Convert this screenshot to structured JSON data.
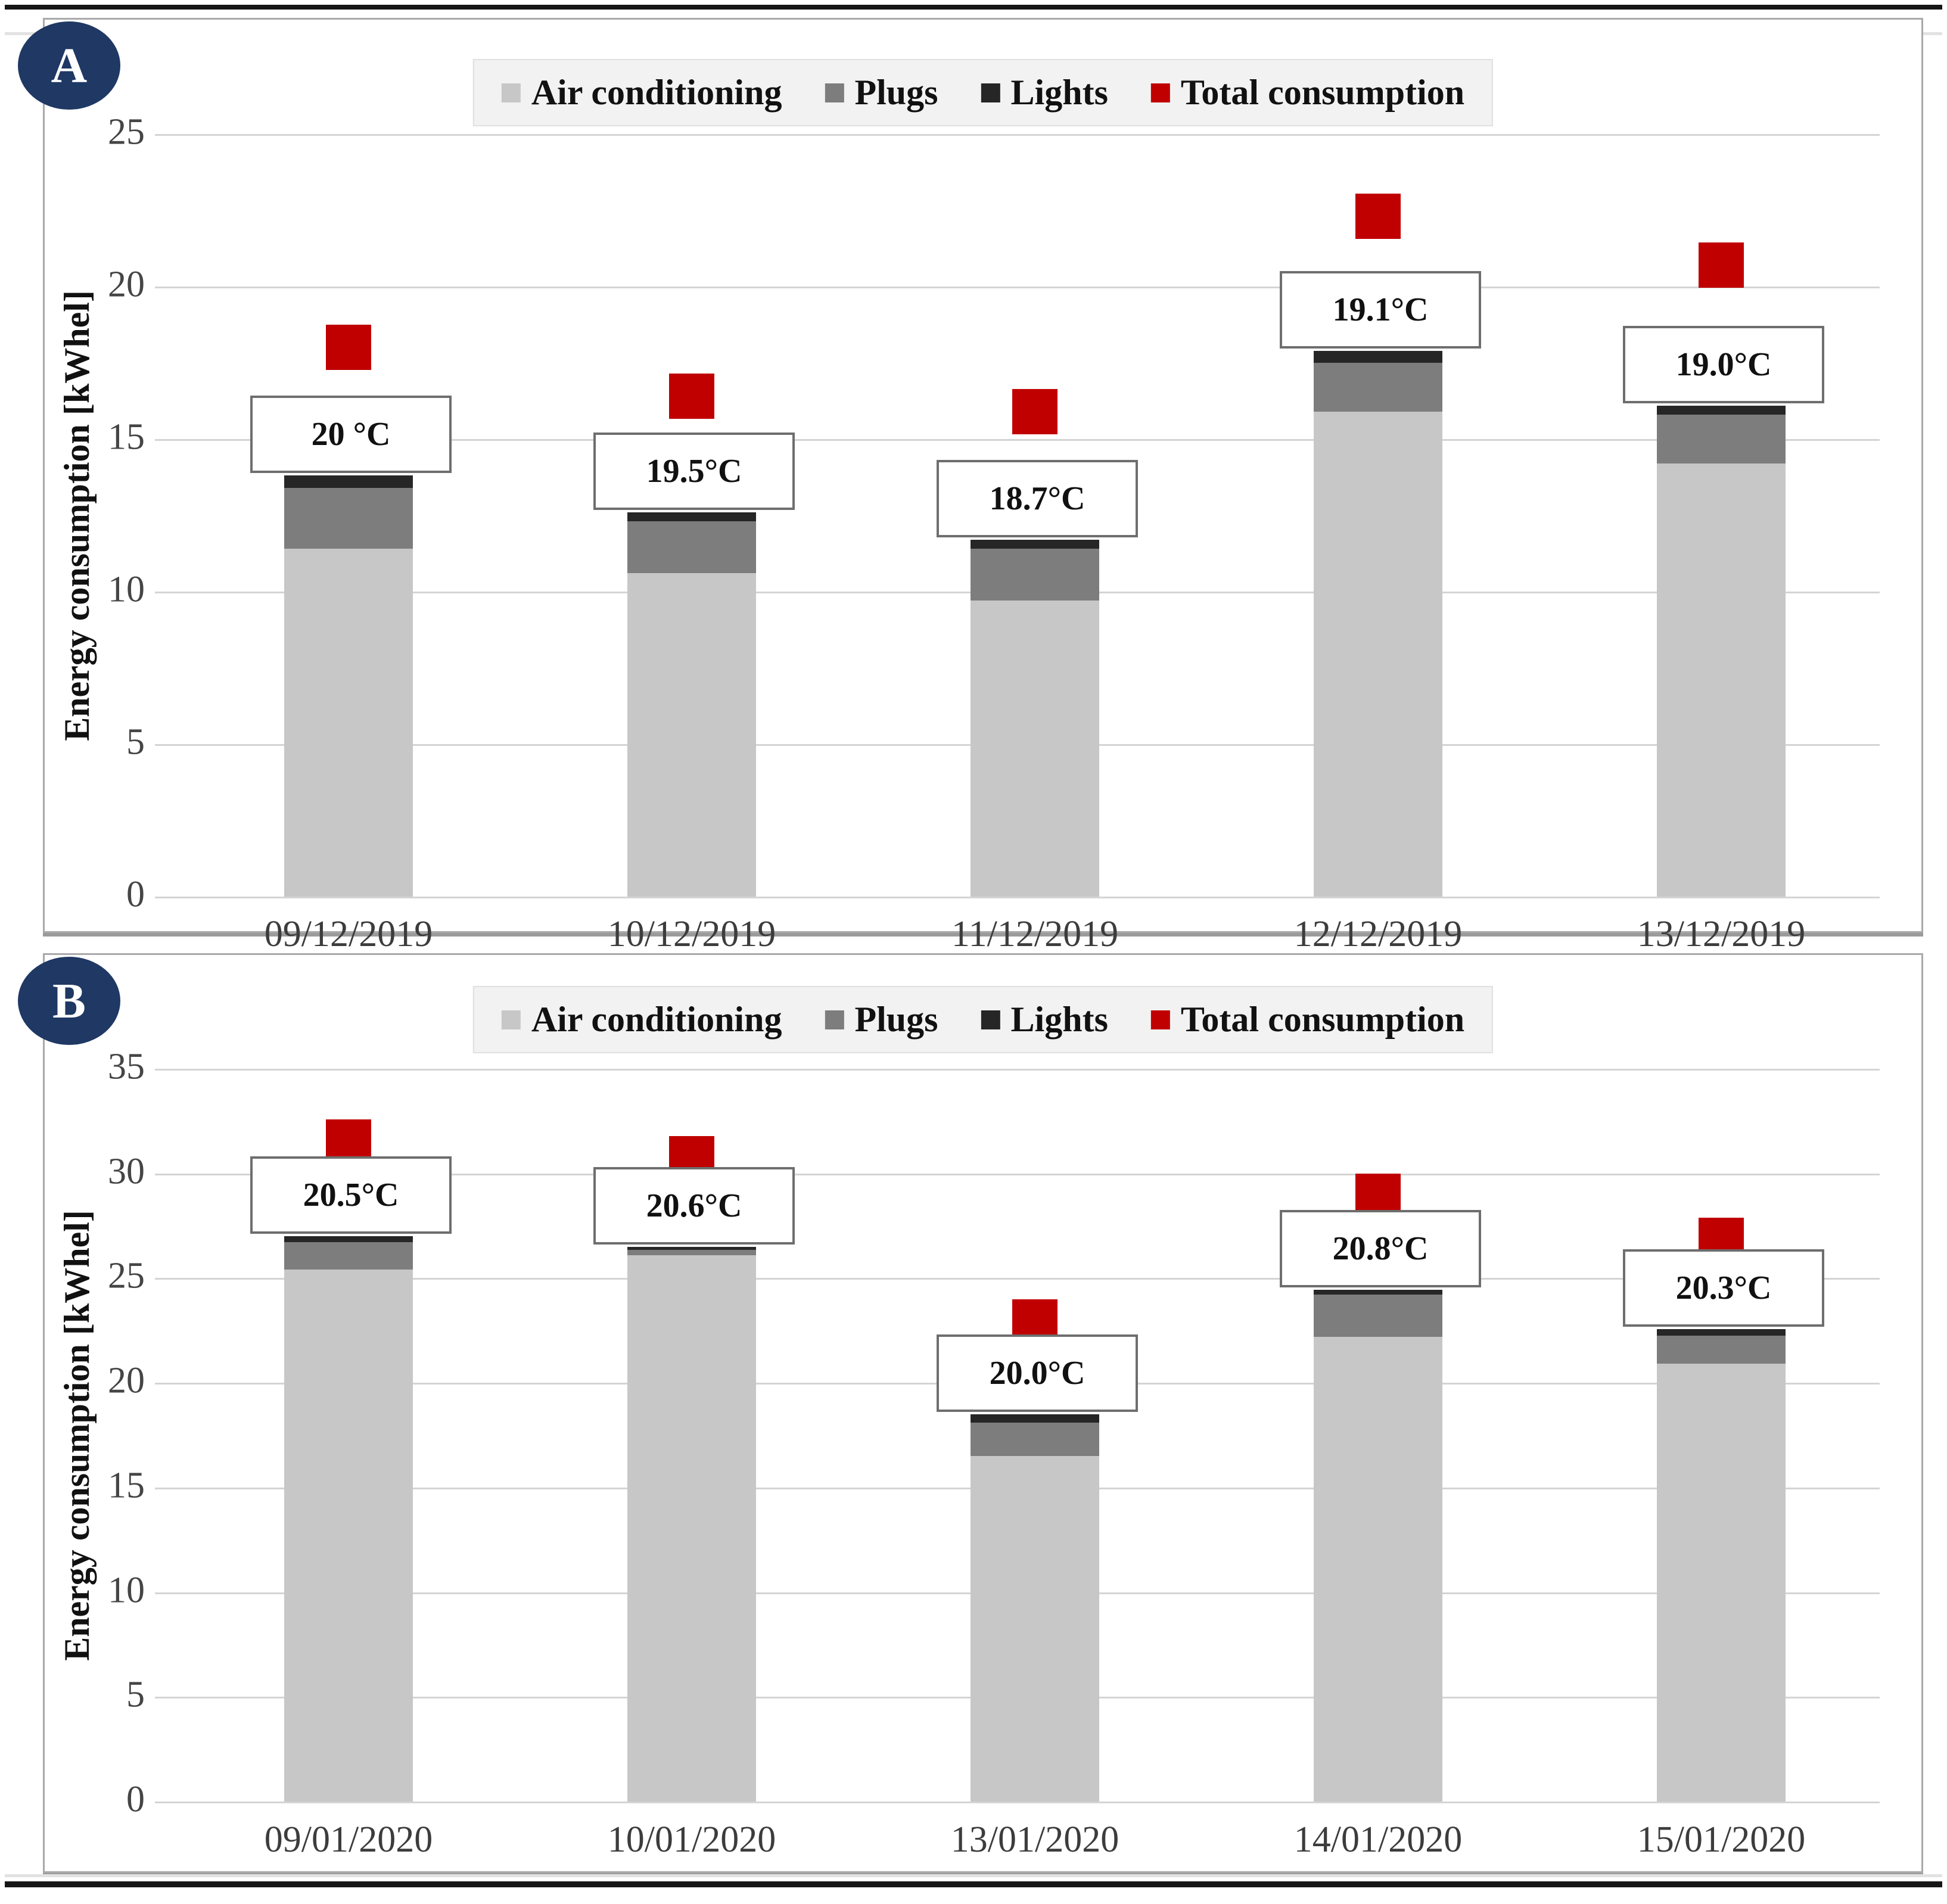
{
  "figure": {
    "panel_a_label": "A",
    "panel_b_label": "B"
  },
  "legend": {
    "items": [
      {
        "label": "Air conditioning",
        "color": "#c7c7c7"
      },
      {
        "label": "Plugs",
        "color": "#7d7d7d"
      },
      {
        "label": "Lights",
        "color": "#262626"
      },
      {
        "label": "Total consumption",
        "color": "#c00000"
      }
    ]
  },
  "colors": {
    "air_conditioning": "#c7c7c7",
    "plugs": "#7d7d7d",
    "lights": "#262626",
    "total_consumption": "#c00000",
    "badge": "#1f3864",
    "gridline": "#d4d4d4",
    "legend_background": "#f2f2f2"
  },
  "chart_data": [
    {
      "type": "bar",
      "stacked": true,
      "panel": "A",
      "ylabel": "Energy consumption [kWhel]",
      "ylim": [
        0,
        25
      ],
      "yticks": [
        0,
        5,
        10,
        15,
        20,
        25
      ],
      "grid": true,
      "legend_position": "top",
      "categories": [
        "09/12/2019",
        "10/12/2019",
        "11/12/2019",
        "12/12/2019",
        "13/12/2019"
      ],
      "series": [
        {
          "name": "Air conditioning",
          "values": [
            11.4,
            10.6,
            9.7,
            15.9,
            14.2
          ]
        },
        {
          "name": "Plugs",
          "values": [
            2.0,
            1.7,
            1.7,
            1.6,
            1.6
          ]
        },
        {
          "name": "Lights",
          "values": [
            0.4,
            0.3,
            0.3,
            0.4,
            0.3
          ]
        }
      ],
      "markers": {
        "name": "Total consumption",
        "values": [
          18.0,
          16.4,
          15.9,
          22.3,
          20.7
        ]
      },
      "bar_labels": [
        "20 °C",
        "19.5°C",
        "18.7°C",
        "19.1°C",
        "19.0°C"
      ]
    },
    {
      "type": "bar",
      "stacked": true,
      "panel": "B",
      "ylabel": "Energy consumption [kWhel]",
      "ylim": [
        0,
        35
      ],
      "yticks": [
        0,
        5,
        10,
        15,
        20,
        25,
        30,
        35
      ],
      "grid": true,
      "legend_position": "top",
      "categories": [
        "09/01/2020",
        "10/01/2020",
        "13/01/2020",
        "14/01/2020",
        "15/01/2020"
      ],
      "series": [
        {
          "name": "Air conditioning",
          "values": [
            25.4,
            26.1,
            16.5,
            22.2,
            20.9
          ]
        },
        {
          "name": "Plugs",
          "values": [
            1.3,
            0.25,
            1.6,
            2.0,
            1.35
          ]
        },
        {
          "name": "Lights",
          "values": [
            0.3,
            0.15,
            0.4,
            0.25,
            0.3
          ]
        }
      ],
      "markers": {
        "name": "Total consumption",
        "values": [
          31.5,
          30.7,
          22.9,
          28.9,
          26.8
        ]
      },
      "bar_labels": [
        "20.5°C",
        "20.6°C",
        "20.0°C",
        "20.8°C",
        "20.3°C"
      ]
    }
  ]
}
